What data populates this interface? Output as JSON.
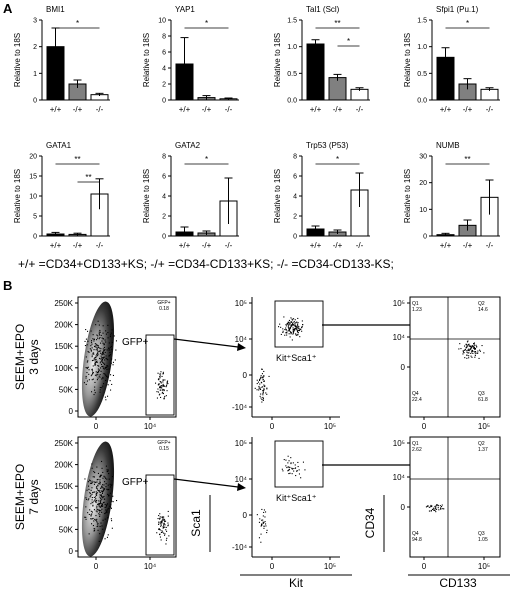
{
  "panels": {
    "a": "A",
    "b": "B"
  },
  "legend_text": "+/+ =CD34+CD133+KS;  -/+ =CD34-CD133+KS;  -/-  =CD34-CD133-KS;",
  "chart_data": [
    {
      "type": "bar",
      "title": "BMI1",
      "ylabel": "Relative to 18S",
      "categories": [
        "+/+",
        "-/+",
        "-/-"
      ],
      "values": [
        2.0,
        0.6,
        0.2
      ],
      "errors": [
        0.7,
        0.15,
        0.05
      ],
      "ylim": [
        0,
        3
      ],
      "yticks": [
        "0",
        "1",
        "2",
        "3"
      ],
      "bar_colors": [
        "#000000",
        "#808080",
        "#ffffff"
      ],
      "sig": [
        {
          "from": 0,
          "to": 2,
          "label": "*"
        }
      ]
    },
    {
      "type": "bar",
      "title": "YAP1",
      "ylabel": "Relative to 18S",
      "categories": [
        "+/+",
        "-/+",
        "-/-"
      ],
      "values": [
        4.5,
        0.3,
        0.15
      ],
      "errors": [
        3.3,
        0.25,
        0.1
      ],
      "ylim": [
        0,
        10
      ],
      "yticks": [
        "0",
        "2",
        "4",
        "6",
        "8",
        "10"
      ],
      "bar_colors": [
        "#000000",
        "#808080",
        "#ffffff"
      ],
      "sig": [
        {
          "from": 0,
          "to": 2,
          "label": "*"
        }
      ]
    },
    {
      "type": "bar",
      "title": "Tal1 (Scl)",
      "ylabel": "Relative to 18S",
      "categories": [
        "+/+",
        "-/+",
        "-/-"
      ],
      "values": [
        1.05,
        0.42,
        0.2
      ],
      "errors": [
        0.08,
        0.06,
        0.03
      ],
      "ylim": [
        0,
        1.5
      ],
      "yticks": [
        "0.0",
        "0.5",
        "1.0",
        "1.5"
      ],
      "bar_colors": [
        "#000000",
        "#808080",
        "#ffffff"
      ],
      "sig": [
        {
          "from": 0,
          "to": 2,
          "label": "**"
        },
        {
          "from": 1,
          "to": 2,
          "label": "*"
        }
      ]
    },
    {
      "type": "bar",
      "title": "Sfpi1 (Pu.1)",
      "ylabel": "Relative to 18S",
      "categories": [
        "+/+",
        "-/+",
        "-/-"
      ],
      "values": [
        0.8,
        0.3,
        0.2
      ],
      "errors": [
        0.18,
        0.1,
        0.03
      ],
      "ylim": [
        0,
        1.5
      ],
      "yticks": [
        "0.0",
        "0.5",
        "1.0",
        "1.5"
      ],
      "bar_colors": [
        "#000000",
        "#808080",
        "#ffffff"
      ],
      "sig": [
        {
          "from": 0,
          "to": 2,
          "label": "*"
        }
      ]
    },
    {
      "type": "bar",
      "title": "GATA1",
      "ylabel": "Relative to 18S",
      "categories": [
        "+/+",
        "-/+",
        "-/-"
      ],
      "values": [
        0.5,
        0.4,
        10.5
      ],
      "errors": [
        0.4,
        0.3,
        3.8
      ],
      "ylim": [
        0,
        20
      ],
      "yticks": [
        "0",
        "5",
        "10",
        "15",
        "20"
      ],
      "bar_colors": [
        "#000000",
        "#808080",
        "#ffffff"
      ],
      "sig": [
        {
          "from": 0,
          "to": 2,
          "label": "**"
        },
        {
          "from": 1,
          "to": 2,
          "label": "**"
        }
      ]
    },
    {
      "type": "bar",
      "title": "GATA2",
      "ylabel": "Relative to 18S",
      "categories": [
        "+/+",
        "-/+",
        "-/-"
      ],
      "values": [
        0.4,
        0.3,
        3.5
      ],
      "errors": [
        0.5,
        0.2,
        2.3
      ],
      "ylim": [
        0,
        8
      ],
      "yticks": [
        "0",
        "2",
        "4",
        "6",
        "8"
      ],
      "bar_colors": [
        "#000000",
        "#808080",
        "#ffffff"
      ],
      "sig": [
        {
          "from": 0,
          "to": 2,
          "label": "*"
        }
      ]
    },
    {
      "type": "bar",
      "title": "Trp53 (P53)",
      "ylabel": "Relative to 18S",
      "categories": [
        "+/+",
        "-/+",
        "-/-"
      ],
      "values": [
        0.7,
        0.4,
        4.6
      ],
      "errors": [
        0.3,
        0.2,
        1.7
      ],
      "ylim": [
        0,
        8
      ],
      "yticks": [
        "0",
        "2",
        "4",
        "6",
        "8"
      ],
      "bar_colors": [
        "#000000",
        "#808080",
        "#ffffff"
      ],
      "sig": [
        {
          "from": 0,
          "to": 2,
          "label": "*"
        }
      ]
    },
    {
      "type": "bar",
      "title": "NUMB",
      "ylabel": "Relative to 18S",
      "categories": [
        "+/+",
        "-/+",
        "-/-"
      ],
      "values": [
        0.5,
        4.0,
        14.5
      ],
      "errors": [
        0.5,
        2.0,
        6.5
      ],
      "ylim": [
        0,
        30
      ],
      "yticks": [
        "0",
        "10",
        "20",
        "30"
      ],
      "bar_colors": [
        "#000000",
        "#808080",
        "#ffffff"
      ],
      "sig": [
        {
          "from": 0,
          "to": 2,
          "label": "**"
        }
      ]
    }
  ],
  "flow_rows": [
    {
      "condition_line1": "SEEM+EPO",
      "condition_line2": "3 days",
      "gfp_gate_label": "GFP+",
      "gfp_gate_value": "0.18",
      "kit_gate_label": "Kit⁺Sca1⁺",
      "quadrants": {
        "Q1": "1.23",
        "Q2": "14.6",
        "Q3": "61.8",
        "Q4": "22.4"
      }
    },
    {
      "condition_line1": "SEEM+EPO",
      "condition_line2": "7 days",
      "gfp_gate_label": "GFP+",
      "gfp_gate_value": "0.15",
      "kit_gate_label": "Kit⁺Sca1⁺",
      "quadrants": {
        "Q1": "2.62",
        "Q2": "1.37",
        "Q3": "1.05",
        "Q4": "94.8"
      }
    }
  ],
  "flow_axes": {
    "left_y_ticks": [
      "250K",
      "200K",
      "150K",
      "100K",
      "50K",
      "0"
    ],
    "left_x_ticks": [
      "0",
      "10⁴"
    ],
    "gfp_top_label": "GFP+",
    "mid_y_ticks": [
      "10⁵",
      "10⁴",
      "0",
      "-10⁴"
    ],
    "mid_x_ticks": [
      "0",
      "10⁵"
    ],
    "mid_xlabel": "Kit",
    "mid_ylabel": "Sca1",
    "right_y_ticks": [
      "10⁵",
      "10⁴",
      "0"
    ],
    "right_x_ticks": [
      "0",
      "10⁵"
    ],
    "right_xlabel": "CD133",
    "right_ylabel": "CD34"
  }
}
